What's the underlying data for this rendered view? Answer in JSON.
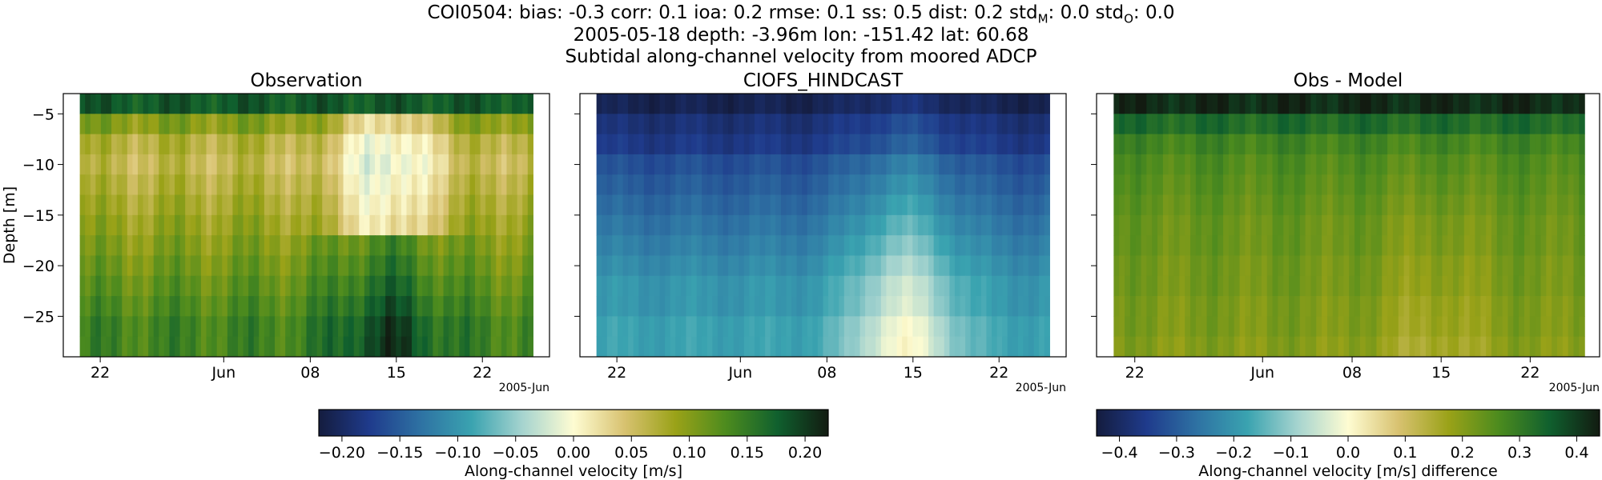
{
  "figure": {
    "title_line1_prefix": "COI0504: bias: -0.3  corr: 0.1  ioa: 0.2  rmse: 0.1  ss: 0.5  dist: 0.2  std",
    "title_line1_sub_m": "M",
    "title_line1_mid": ": 0.0  std",
    "title_line1_sub_o": "O",
    "title_line1_suffix": ": 0.0",
    "title_line2": "2005-05-18 depth: -3.96m lon: -151.42 lat: 60.68",
    "title_line3": "Subtidal along-channel velocity from moored ADCP"
  },
  "chart_data": [
    {
      "type": "heatmap",
      "title": "Observation",
      "ylabel": "Depth [m]",
      "ylim": [
        -29,
        -3
      ],
      "yticks": [
        -5,
        -10,
        -15,
        -20,
        -25
      ],
      "xticks": [
        "22",
        "Jun",
        "08",
        "15",
        "22"
      ],
      "xaxis_offset_label": "2005-Jun",
      "depth_bins": [
        -4,
        -6,
        -8,
        -10,
        -12,
        -14,
        -16,
        -18,
        -20,
        -22,
        -24,
        -26,
        -28
      ],
      "profile_by_depth": [
        0.18,
        0.1,
        0.07,
        0.06,
        0.07,
        0.08,
        0.09,
        0.1,
        0.11,
        0.12,
        0.13,
        0.14,
        0.14
      ],
      "time_anomaly_shape": "mid-June (8-20) weaker flow near 0.0-0.05 m/s in upper layers; stronger 0.17-0.2 m/s near bottom around 15-18 Jun",
      "colorscale": "delta",
      "vmin": -0.22,
      "vmax": 0.22
    },
    {
      "type": "heatmap",
      "title": "CIOFS_HINDCAST",
      "ylim": [
        -29,
        -3
      ],
      "yticks": [
        -5,
        -10,
        -15,
        -20,
        -25
      ],
      "xticks": [
        "22",
        "Jun",
        "08",
        "15",
        "22"
      ],
      "xaxis_offset_label": "2005-Jun",
      "depth_bins": [
        -4,
        -6,
        -8,
        -10,
        -12,
        -14,
        -16,
        -18,
        -20,
        -22,
        -24,
        -26,
        -28
      ],
      "profile_by_depth": [
        -0.21,
        -0.19,
        -0.18,
        -0.16,
        -0.15,
        -0.14,
        -0.13,
        -0.12,
        -0.11,
        -0.1,
        -0.1,
        -0.09,
        -0.09
      ],
      "time_anomaly_shape": "weakest negative flow (near -0.05) mid-June around 12-18 Jun at depth",
      "colorscale": "delta",
      "vmin": -0.22,
      "vmax": 0.22
    },
    {
      "type": "heatmap",
      "title": "Obs - Model",
      "ylim": [
        -29,
        -3
      ],
      "yticks": [
        -5,
        -10,
        -15,
        -20,
        -25
      ],
      "xticks": [
        "22",
        "Jun",
        "08",
        "15",
        "22"
      ],
      "xaxis_offset_label": "2005-Jun",
      "depth_bins": [
        -4,
        -6,
        -8,
        -10,
        -12,
        -14,
        -16,
        -18,
        -20,
        -22,
        -24,
        -26,
        -28
      ],
      "profile_by_depth": [
        0.42,
        0.33,
        0.28,
        0.26,
        0.25,
        0.24,
        0.23,
        0.23,
        0.22,
        0.22,
        0.21,
        0.21,
        0.2
      ],
      "time_anomaly_shape": "slightly smaller differences (~0.15) in mid-June near bottom",
      "colorscale": "delta",
      "vmin": -0.44,
      "vmax": 0.44
    }
  ],
  "colorbars": [
    {
      "label": "Along-channel velocity [m/s]",
      "range": [
        -0.22,
        0.22
      ],
      "ticks": [
        -0.2,
        -0.15,
        -0.1,
        -0.05,
        0.0,
        0.05,
        0.1,
        0.15,
        0.2
      ],
      "tick_labels": [
        "−0.20",
        "−0.15",
        "−0.10",
        "−0.05",
        "0.00",
        "0.05",
        "0.10",
        "0.15",
        "0.20"
      ]
    },
    {
      "label": "Along-channel velocity [m/s] difference",
      "range": [
        -0.44,
        0.44
      ],
      "ticks": [
        -0.4,
        -0.3,
        -0.2,
        -0.1,
        0.0,
        0.1,
        0.2,
        0.3,
        0.4
      ],
      "tick_labels": [
        "−0.4",
        "−0.3",
        "−0.2",
        "−0.1",
        "0.0",
        "0.1",
        "0.2",
        "0.3",
        "0.4"
      ]
    }
  ],
  "y_tick_labels": [
    "−5",
    "−10",
    "−15",
    "−20",
    "−25"
  ],
  "colormap_stops": [
    "#141c3e",
    "#1f3b8c",
    "#2e72a3",
    "#3aa3b0",
    "#a6d4cf",
    "#fefcd2",
    "#d8c270",
    "#9aa218",
    "#4c8b1e",
    "#10602e",
    "#121b11"
  ]
}
